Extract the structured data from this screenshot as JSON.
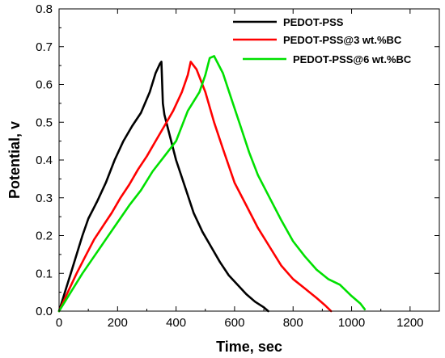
{
  "chart_data": {
    "type": "line",
    "title": "",
    "xlabel": "Time, sec",
    "ylabel": "Potential, v",
    "xlim": [
      0,
      1300
    ],
    "ylim": [
      0,
      0.8
    ],
    "xticks": [
      0,
      200,
      400,
      600,
      800,
      1000,
      1200
    ],
    "yticks": [
      0.0,
      0.1,
      0.2,
      0.3,
      0.4,
      0.5,
      0.6,
      0.7,
      0.8
    ],
    "xtick_labels": [
      "0",
      "200",
      "400",
      "600",
      "800",
      "1000",
      "1200"
    ],
    "ytick_labels": [
      "0.0",
      "0.1",
      "0.2",
      "0.3",
      "0.4",
      "0.5",
      "0.6",
      "0.7",
      "0.8"
    ],
    "grid": false,
    "legend_position": "top-right",
    "series": [
      {
        "name": "PEDOT-PSS",
        "color": "#000000",
        "x": [
          0,
          20,
          40,
          60,
          80,
          100,
          130,
          160,
          190,
          220,
          250,
          280,
          310,
          330,
          345,
          350,
          355,
          360,
          380,
          400,
          430,
          460,
          490,
          520,
          550,
          580,
          610,
          640,
          670,
          700,
          715
        ],
        "y": [
          0.0,
          0.05,
          0.1,
          0.15,
          0.2,
          0.245,
          0.29,
          0.34,
          0.4,
          0.45,
          0.49,
          0.525,
          0.58,
          0.63,
          0.655,
          0.66,
          0.55,
          0.52,
          0.46,
          0.4,
          0.33,
          0.26,
          0.21,
          0.17,
          0.13,
          0.095,
          0.07,
          0.045,
          0.025,
          0.01,
          0.0
        ]
      },
      {
        "name": "PEDOT-PSS@3 wt.%BC",
        "color": "#ff0000",
        "x": [
          0,
          30,
          60,
          90,
          120,
          150,
          180,
          210,
          240,
          270,
          300,
          330,
          360,
          390,
          420,
          440,
          450,
          470,
          500,
          530,
          560,
          600,
          640,
          680,
          720,
          760,
          800,
          840,
          880,
          910,
          930
        ],
        "y": [
          0.0,
          0.05,
          0.1,
          0.145,
          0.19,
          0.225,
          0.26,
          0.3,
          0.335,
          0.375,
          0.41,
          0.45,
          0.49,
          0.53,
          0.58,
          0.625,
          0.66,
          0.64,
          0.58,
          0.5,
          0.43,
          0.34,
          0.28,
          0.22,
          0.17,
          0.12,
          0.085,
          0.06,
          0.035,
          0.015,
          0.0
        ]
      },
      {
        "name": "PEDOT-PSS@6 wt.%BC",
        "color": "#00e000",
        "x": [
          0,
          40,
          80,
          120,
          160,
          200,
          240,
          280,
          320,
          360,
          400,
          440,
          480,
          500,
          515,
          530,
          560,
          590,
          620,
          650,
          680,
          720,
          760,
          800,
          840,
          880,
          920,
          960,
          1000,
          1030,
          1045
        ],
        "y": [
          0.0,
          0.05,
          0.1,
          0.145,
          0.19,
          0.235,
          0.28,
          0.32,
          0.37,
          0.41,
          0.45,
          0.53,
          0.58,
          0.625,
          0.67,
          0.675,
          0.63,
          0.56,
          0.49,
          0.42,
          0.36,
          0.3,
          0.24,
          0.185,
          0.145,
          0.11,
          0.085,
          0.07,
          0.04,
          0.02,
          0.005
        ]
      }
    ]
  }
}
